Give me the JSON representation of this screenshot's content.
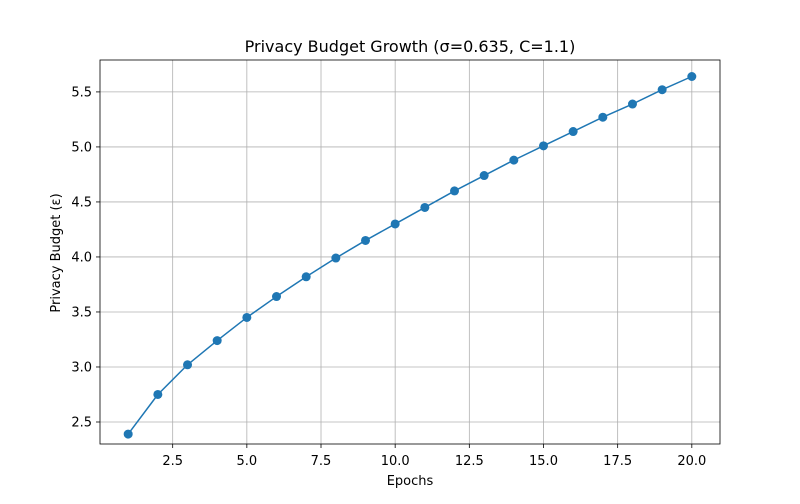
{
  "chart_data": {
    "type": "line",
    "title": "Privacy Budget Growth (σ=0.635, C=1.1)",
    "xlabel": "Epochs",
    "ylabel": "Privacy Budget (ε)",
    "xlim": [
      0.05,
      20.95
    ],
    "ylim": [
      2.3,
      5.79
    ],
    "x_ticks": [
      2.5,
      5.0,
      7.5,
      10.0,
      12.5,
      15.0,
      17.5,
      20.0
    ],
    "x_tick_labels": [
      "2.5",
      "5.0",
      "7.5",
      "10.0",
      "12.5",
      "15.0",
      "17.5",
      "20.0"
    ],
    "y_ticks": [
      2.5,
      3.0,
      3.5,
      4.0,
      4.5,
      5.0,
      5.5
    ],
    "y_tick_labels": [
      "2.5",
      "3.0",
      "3.5",
      "4.0",
      "4.5",
      "5.0",
      "5.5"
    ],
    "grid": true,
    "legend": false,
    "colors": {
      "series": "#1f77b4",
      "grid": "#b0b0b0",
      "axes": "#000000"
    },
    "series": [
      {
        "marker": "circle",
        "x": [
          1,
          2,
          3,
          4,
          5,
          6,
          7,
          8,
          9,
          10,
          11,
          12,
          13,
          14,
          15,
          16,
          17,
          18,
          19,
          20
        ],
        "y": [
          2.39,
          2.75,
          3.02,
          3.24,
          3.45,
          3.64,
          3.82,
          3.99,
          4.15,
          4.3,
          4.45,
          4.6,
          4.74,
          4.88,
          5.01,
          5.14,
          5.27,
          5.39,
          5.52,
          5.64
        ]
      }
    ]
  }
}
